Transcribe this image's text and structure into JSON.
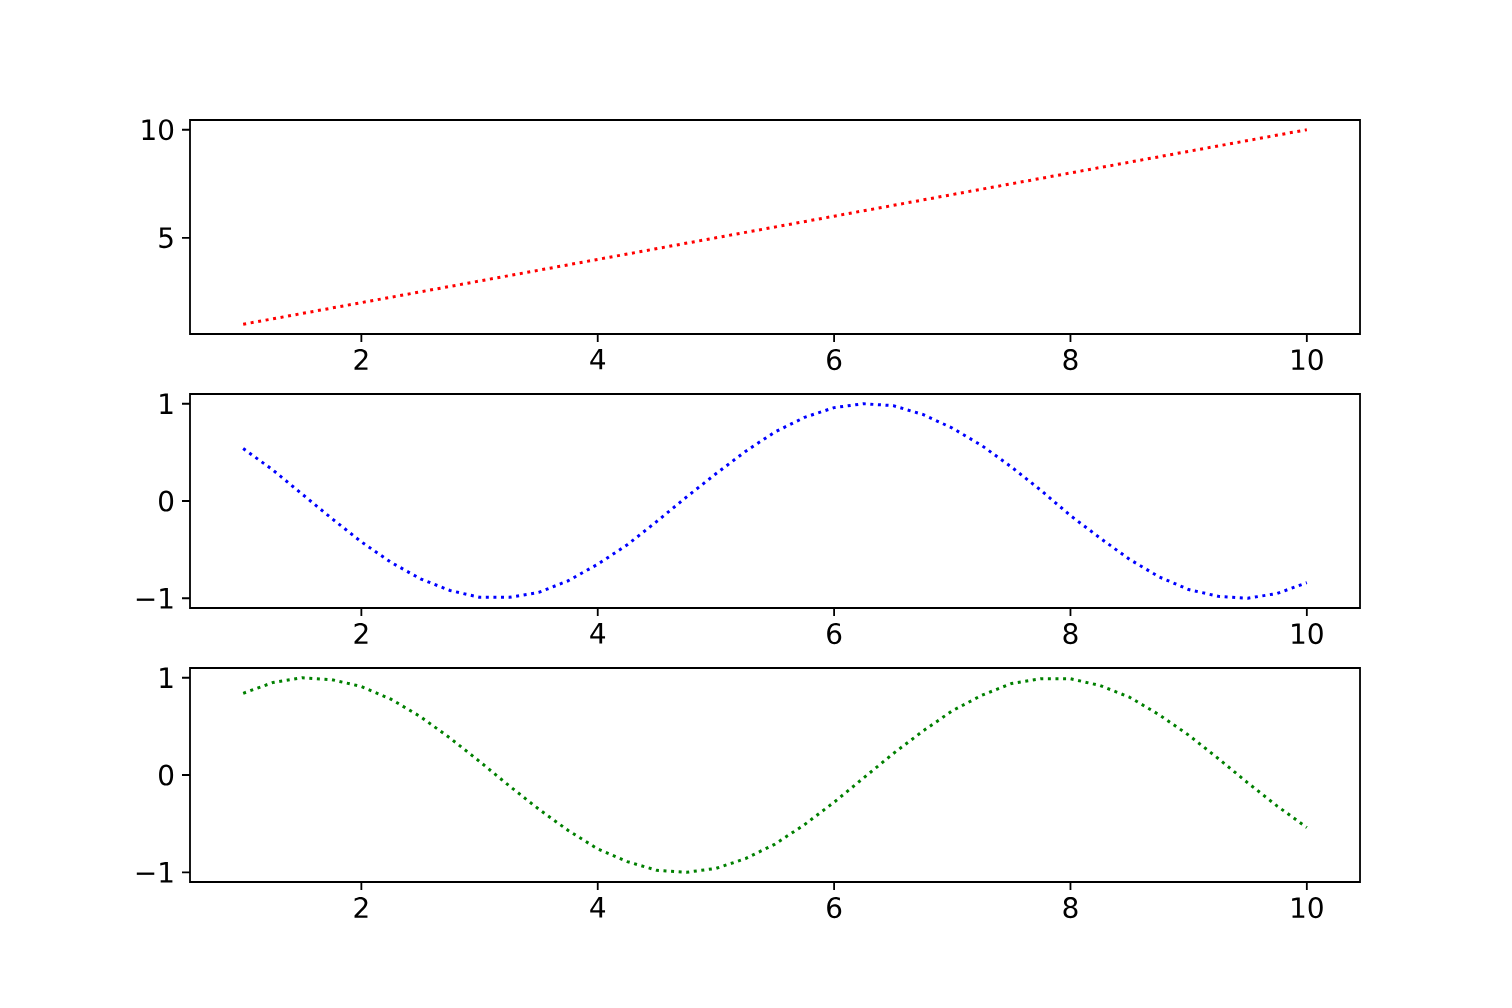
{
  "chart_data": [
    {
      "type": "line",
      "x": [
        1,
        2,
        3,
        4,
        5,
        6,
        7,
        8,
        9,
        10
      ],
      "line_style": "dotted",
      "xlim": [
        0.55,
        10.45
      ],
      "ylim": [
        0.55,
        10.45
      ],
      "xticks": [
        2,
        4,
        6,
        8,
        10
      ],
      "yticks": [
        5,
        10
      ],
      "series": [
        {
          "color": "#ff0000",
          "values": [
            1,
            2,
            3,
            4,
            5,
            6,
            7,
            8,
            9,
            10
          ]
        }
      ]
    },
    {
      "type": "line",
      "x": [
        1,
        1.25,
        1.5,
        1.75,
        2,
        2.25,
        2.5,
        2.75,
        3,
        3.25,
        3.5,
        3.75,
        4,
        4.25,
        4.5,
        4.75,
        5,
        5.25,
        5.5,
        5.75,
        6,
        6.25,
        6.5,
        6.75,
        7,
        7.25,
        7.5,
        7.75,
        8,
        8.25,
        8.5,
        8.75,
        9,
        9.25,
        9.5,
        9.75,
        10
      ],
      "line_style": "dotted",
      "xlim": [
        0.55,
        10.45
      ],
      "ylim": [
        -1.1,
        1.1
      ],
      "xticks": [
        2,
        4,
        6,
        8,
        10
      ],
      "yticks": [
        {
          "value": -1,
          "label": "−1"
        },
        0,
        1
      ],
      "series": [
        {
          "color": "#0000ff",
          "values": [
            0.54,
            0.32,
            0.07,
            -0.18,
            -0.42,
            -0.63,
            -0.8,
            -0.92,
            -0.99,
            -0.99,
            -0.94,
            -0.82,
            -0.65,
            -0.45,
            -0.21,
            0.04,
            0.28,
            0.51,
            0.71,
            0.86,
            0.96,
            1.0,
            0.98,
            0.89,
            0.75,
            0.57,
            0.35,
            0.11,
            -0.15,
            -0.38,
            -0.6,
            -0.78,
            -0.91,
            -0.98,
            -1.0,
            -0.95,
            -0.84
          ]
        }
      ]
    },
    {
      "type": "line",
      "x": [
        1,
        1.25,
        1.5,
        1.75,
        2,
        2.25,
        2.5,
        2.75,
        3,
        3.25,
        3.5,
        3.75,
        4,
        4.25,
        4.5,
        4.75,
        5,
        5.25,
        5.5,
        5.75,
        6,
        6.25,
        6.5,
        6.75,
        7,
        7.25,
        7.5,
        7.75,
        8,
        8.25,
        8.5,
        8.75,
        9,
        9.25,
        9.5,
        9.75,
        10
      ],
      "line_style": "dotted",
      "xlim": [
        0.55,
        10.45
      ],
      "ylim": [
        -1.1,
        1.1
      ],
      "xticks": [
        2,
        4,
        6,
        8,
        10
      ],
      "yticks": [
        {
          "value": -1,
          "label": "−1"
        },
        0,
        1
      ],
      "series": [
        {
          "color": "#008000",
          "values": [
            0.84,
            0.95,
            1.0,
            0.98,
            0.91,
            0.78,
            0.6,
            0.38,
            0.14,
            -0.11,
            -0.35,
            -0.57,
            -0.76,
            -0.89,
            -0.98,
            -1.0,
            -0.96,
            -0.86,
            -0.71,
            -0.51,
            -0.28,
            -0.03,
            0.22,
            0.45,
            0.66,
            0.82,
            0.94,
            0.99,
            0.99,
            0.92,
            0.8,
            0.62,
            0.41,
            0.17,
            -0.08,
            -0.32,
            -0.54
          ]
        }
      ]
    }
  ]
}
